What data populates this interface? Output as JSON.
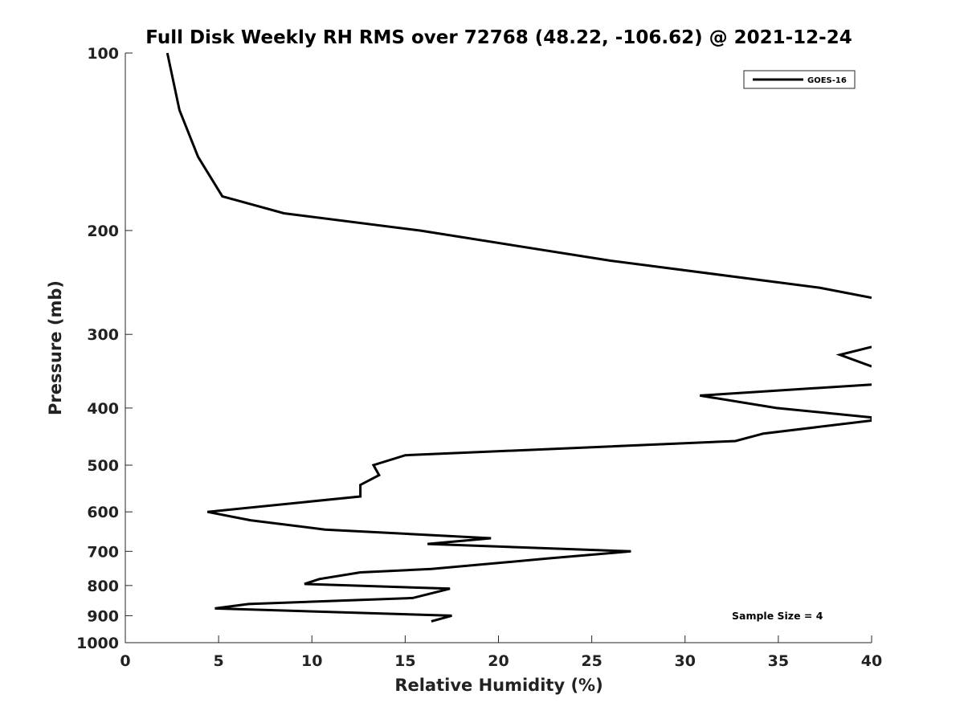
{
  "chart_data": {
    "type": "line",
    "title": "Full Disk Weekly RH RMS over 72768 (48.22, -106.62) @ 2021-12-24",
    "xlabel": "Relative Humidity (%)",
    "ylabel": "Pressure (mb)",
    "xlim": [
      0,
      40
    ],
    "ylim": [
      100,
      1000
    ],
    "y_scale": "log",
    "y_reversed": true,
    "x_ticks": [
      0,
      5,
      10,
      15,
      20,
      25,
      30,
      35,
      40
    ],
    "y_ticks": [
      100,
      200,
      300,
      400,
      500,
      600,
      700,
      800,
      900,
      1000
    ],
    "legend_position": "top-right",
    "annotation": "Sample Size = 4",
    "series": [
      {
        "name": "GOES-16",
        "color": "#000000",
        "x": [
          2.25,
          2.9,
          3.9,
          5.2,
          8.5,
          15.8,
          26.0,
          37.2,
          40.0
        ],
        "y": [
          100,
          125,
          150,
          175,
          187,
          200,
          225,
          250,
          260
        ]
      },
      {
        "color": "#000000",
        "x": [
          40.0,
          38.3,
          40.0
        ],
        "y": [
          315,
          325,
          340
        ]
      },
      {
        "color": "#000000",
        "x": [
          40.0,
          30.8,
          34.9,
          40.0,
          40.0,
          34.2,
          32.7,
          15.0,
          13.3,
          13.6,
          12.6,
          12.6,
          4.4,
          6.7,
          10.7,
          19.6,
          16.2,
          27.1,
          22.6,
          16.4,
          12.6,
          10.4,
          9.6,
          17.4,
          15.4,
          6.6,
          4.8,
          17.5,
          16.4
        ],
        "y": [
          365,
          381,
          400,
          415,
          420,
          442,
          455,
          481,
          500,
          520,
          540,
          565,
          600,
          620,
          643,
          665,
          680,
          700,
          720,
          750,
          760,
          780,
          795,
          810,
          840,
          860,
          875,
          900,
          920
        ]
      }
    ]
  }
}
